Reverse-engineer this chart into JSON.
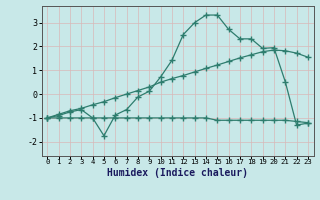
{
  "xlabel": "Humidex (Indice chaleur)",
  "background_color": "#c8e8e8",
  "grid_color": "#b0d4d4",
  "line_color": "#2e7d6e",
  "xlim": [
    -0.5,
    23.5
  ],
  "ylim": [
    -2.6,
    3.7
  ],
  "xticks": [
    0,
    1,
    2,
    3,
    4,
    5,
    6,
    7,
    8,
    9,
    10,
    11,
    12,
    13,
    14,
    15,
    16,
    17,
    18,
    19,
    20,
    21,
    22,
    23
  ],
  "yticks": [
    -2,
    -1,
    0,
    1,
    2,
    3
  ],
  "line1_y": [
    -1.0,
    -1.0,
    -1.0,
    -1.0,
    -1.0,
    -1.0,
    -1.0,
    -1.0,
    -1.0,
    -1.0,
    -1.0,
    -1.0,
    -1.0,
    -1.0,
    -1.0,
    -1.1,
    -1.1,
    -1.1,
    -1.1,
    -1.1,
    -1.1,
    -1.1,
    -1.15,
    -1.2
  ],
  "line2_y": [
    -1.0,
    -0.85,
    -0.7,
    -0.6,
    -0.45,
    -0.32,
    -0.15,
    0.0,
    0.15,
    0.3,
    0.5,
    0.65,
    0.78,
    0.93,
    1.08,
    1.22,
    1.37,
    1.52,
    1.65,
    1.78,
    1.85,
    1.82,
    1.72,
    1.55
  ],
  "line3_y": [
    -1.0,
    -0.9,
    -0.75,
    -0.65,
    -1.0,
    -1.75,
    -0.88,
    -0.65,
    -0.12,
    0.12,
    0.72,
    1.42,
    2.5,
    3.0,
    3.32,
    3.32,
    2.72,
    2.32,
    2.32,
    1.92,
    1.95,
    0.52,
    -1.3,
    -1.22
  ]
}
